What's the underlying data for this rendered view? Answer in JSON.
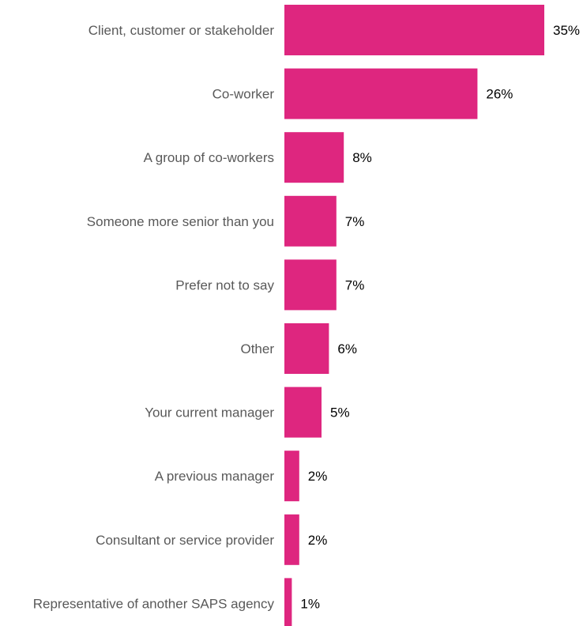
{
  "chart_data": {
    "type": "bar",
    "orientation": "horizontal",
    "categories": [
      "Client, customer or stakeholder",
      "Co-worker",
      "A group of co-workers",
      "Someone more senior than you",
      "Prefer not to say",
      "Other",
      "Your current manager",
      "A previous manager",
      "Consultant or service provider",
      "Representative of another SAPS agency"
    ],
    "values": [
      35,
      26,
      8,
      7,
      7,
      6,
      5,
      2,
      2,
      1
    ],
    "value_labels": [
      "35%",
      "26%",
      "8%",
      "7%",
      "7%",
      "6%",
      "5%",
      "2%",
      "2%",
      "1%"
    ],
    "unit": "%",
    "xlim": [
      0,
      35
    ],
    "grid": false,
    "legend": "none",
    "colors": {
      "bar": "#de267f",
      "category_text": "#595959",
      "value_text": "#000000"
    }
  }
}
